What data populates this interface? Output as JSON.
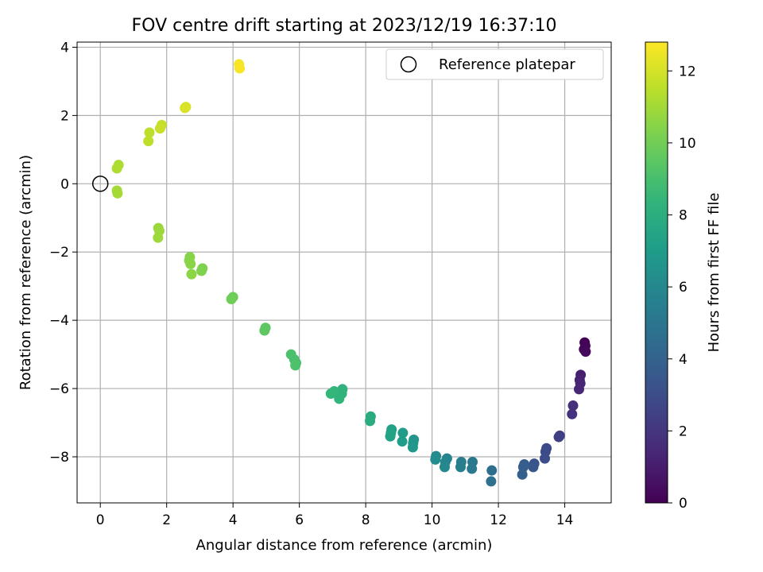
{
  "chart_data": {
    "type": "scatter",
    "title": "FOV centre drift starting at 2023/12/19 16:37:10",
    "xlabel": "Angular distance from reference (arcmin)",
    "ylabel": "Rotation from reference (arcmin)",
    "colorbar_label": "Hours from first FF file",
    "xlim": [
      -0.7,
      15.4
    ],
    "ylim": [
      -9.35,
      4.15
    ],
    "clim": [
      0,
      12.8
    ],
    "x_ticks": [
      0,
      2,
      4,
      6,
      8,
      10,
      12,
      14
    ],
    "y_ticks": [
      -8,
      -6,
      -4,
      -2,
      0,
      2,
      4
    ],
    "colorbar_ticks": [
      0,
      2,
      4,
      6,
      8,
      10,
      12
    ],
    "grid": true,
    "colormap": "viridis",
    "legend": {
      "position": "top-right",
      "entries": [
        "Reference platepar"
      ]
    },
    "reference_point": {
      "x": 0,
      "y": 0
    },
    "points": [
      {
        "x": 14.6,
        "y": -4.65,
        "h": 0.0
      },
      {
        "x": 14.62,
        "y": -4.75,
        "h": 0.1
      },
      {
        "x": 14.58,
        "y": -4.85,
        "h": 0.2
      },
      {
        "x": 14.63,
        "y": -4.92,
        "h": 0.3
      },
      {
        "x": 14.48,
        "y": -5.6,
        "h": 1.1
      },
      {
        "x": 14.45,
        "y": -5.75,
        "h": 1.2
      },
      {
        "x": 14.47,
        "y": -5.85,
        "h": 1.3
      },
      {
        "x": 14.43,
        "y": -6.02,
        "h": 1.4
      },
      {
        "x": 14.25,
        "y": -6.5,
        "h": 1.7
      },
      {
        "x": 14.22,
        "y": -6.75,
        "h": 1.8
      },
      {
        "x": 13.85,
        "y": -7.38,
        "h": 2.3
      },
      {
        "x": 13.82,
        "y": -7.42,
        "h": 2.4
      },
      {
        "x": 13.45,
        "y": -7.75,
        "h": 2.8
      },
      {
        "x": 13.42,
        "y": -7.85,
        "h": 2.9
      },
      {
        "x": 13.4,
        "y": -8.05,
        "h": 3.0
      },
      {
        "x": 13.08,
        "y": -8.2,
        "h": 3.3
      },
      {
        "x": 13.05,
        "y": -8.3,
        "h": 3.4
      },
      {
        "x": 12.78,
        "y": -8.22,
        "h": 3.7
      },
      {
        "x": 12.75,
        "y": -8.3,
        "h": 3.8
      },
      {
        "x": 12.72,
        "y": -8.52,
        "h": 3.9
      },
      {
        "x": 11.8,
        "y": -8.4,
        "h": 4.6
      },
      {
        "x": 11.78,
        "y": -8.72,
        "h": 4.7
      },
      {
        "x": 11.22,
        "y": -8.15,
        "h": 5.1
      },
      {
        "x": 11.2,
        "y": -8.35,
        "h": 5.2
      },
      {
        "x": 10.88,
        "y": -8.15,
        "h": 5.4
      },
      {
        "x": 10.86,
        "y": -8.3,
        "h": 5.5
      },
      {
        "x": 10.45,
        "y": -8.05,
        "h": 5.8
      },
      {
        "x": 10.4,
        "y": -8.15,
        "h": 5.9
      },
      {
        "x": 10.38,
        "y": -8.3,
        "h": 6.0
      },
      {
        "x": 10.12,
        "y": -7.98,
        "h": 6.1
      },
      {
        "x": 10.1,
        "y": -8.08,
        "h": 6.2
      },
      {
        "x": 9.45,
        "y": -7.5,
        "h": 6.6
      },
      {
        "x": 9.43,
        "y": -7.6,
        "h": 6.7
      },
      {
        "x": 9.42,
        "y": -7.72,
        "h": 6.8
      },
      {
        "x": 9.12,
        "y": -7.3,
        "h": 7.0
      },
      {
        "x": 9.1,
        "y": -7.55,
        "h": 7.1
      },
      {
        "x": 8.78,
        "y": -7.2,
        "h": 7.3
      },
      {
        "x": 8.76,
        "y": -7.3,
        "h": 7.35
      },
      {
        "x": 8.74,
        "y": -7.4,
        "h": 7.4
      },
      {
        "x": 8.15,
        "y": -6.82,
        "h": 7.8
      },
      {
        "x": 8.13,
        "y": -6.95,
        "h": 7.85
      },
      {
        "x": 7.3,
        "y": -6.02,
        "h": 8.2
      },
      {
        "x": 7.28,
        "y": -6.15,
        "h": 8.25
      },
      {
        "x": 7.2,
        "y": -6.3,
        "h": 8.3
      },
      {
        "x": 7.05,
        "y": -6.08,
        "h": 8.4
      },
      {
        "x": 6.95,
        "y": -6.15,
        "h": 8.45
      },
      {
        "x": 5.9,
        "y": -5.25,
        "h": 9.0
      },
      {
        "x": 5.85,
        "y": -5.15,
        "h": 9.05
      },
      {
        "x": 5.75,
        "y": -5.0,
        "h": 9.1
      },
      {
        "x": 5.88,
        "y": -5.32,
        "h": 9.15
      },
      {
        "x": 4.98,
        "y": -4.22,
        "h": 9.5
      },
      {
        "x": 4.95,
        "y": -4.3,
        "h": 9.55
      },
      {
        "x": 4.0,
        "y": -3.32,
        "h": 9.9
      },
      {
        "x": 3.95,
        "y": -3.38,
        "h": 9.95
      },
      {
        "x": 3.08,
        "y": -2.48,
        "h": 10.25
      },
      {
        "x": 3.05,
        "y": -2.55,
        "h": 10.3
      },
      {
        "x": 2.7,
        "y": -2.15,
        "h": 10.4
      },
      {
        "x": 2.68,
        "y": -2.25,
        "h": 10.45
      },
      {
        "x": 2.72,
        "y": -2.35,
        "h": 10.5
      },
      {
        "x": 2.75,
        "y": -2.65,
        "h": 10.55
      },
      {
        "x": 1.75,
        "y": -1.3,
        "h": 10.8
      },
      {
        "x": 1.78,
        "y": -1.38,
        "h": 10.85
      },
      {
        "x": 1.74,
        "y": -1.58,
        "h": 10.9
      },
      {
        "x": 0.5,
        "y": -0.2,
        "h": 11.0
      },
      {
        "x": 0.52,
        "y": -0.28,
        "h": 11.05
      },
      {
        "x": 0.55,
        "y": 0.55,
        "h": 11.2
      },
      {
        "x": 0.5,
        "y": 0.45,
        "h": 11.25
      },
      {
        "x": 1.48,
        "y": 1.5,
        "h": 11.5
      },
      {
        "x": 1.45,
        "y": 1.25,
        "h": 11.55
      },
      {
        "x": 1.85,
        "y": 1.72,
        "h": 11.7
      },
      {
        "x": 1.8,
        "y": 1.62,
        "h": 11.75
      },
      {
        "x": 2.58,
        "y": 2.25,
        "h": 12.0
      },
      {
        "x": 2.55,
        "y": 2.22,
        "h": 12.05
      },
      {
        "x": 4.18,
        "y": 3.5,
        "h": 12.6
      },
      {
        "x": 4.2,
        "y": 3.38,
        "h": 12.7
      }
    ]
  }
}
